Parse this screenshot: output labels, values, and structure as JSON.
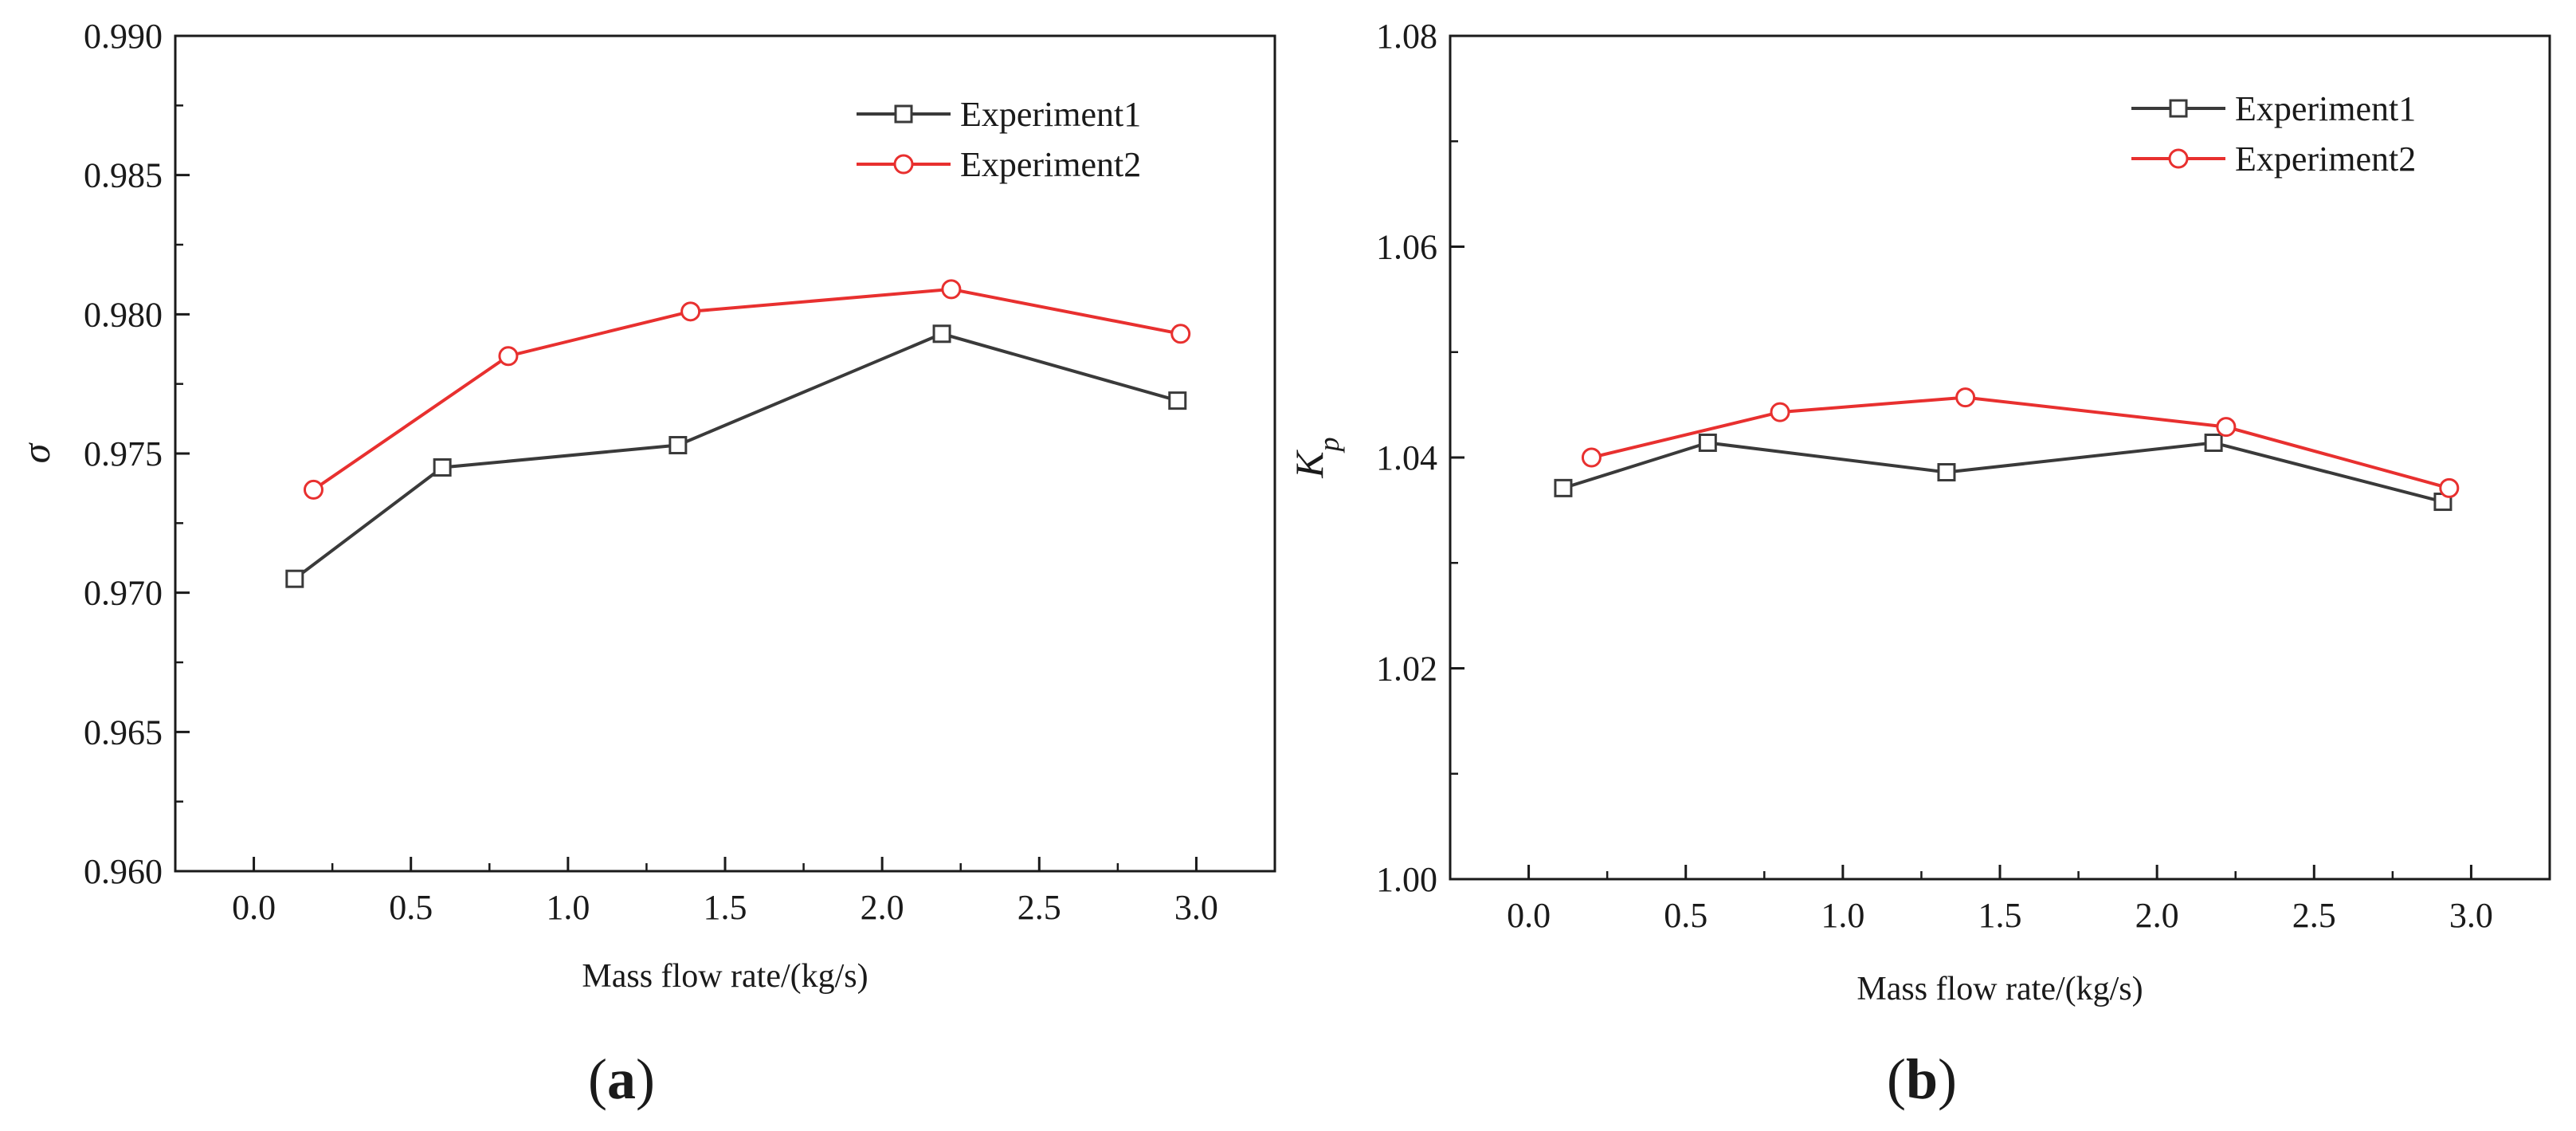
{
  "chart_data": [
    {
      "type": "line",
      "id": "a",
      "panel_label": "(a)",
      "panel_open": "(",
      "panel_letter": "a",
      "panel_close": ")",
      "title": "",
      "xlabel": "Mass flow rate/(kg/s)",
      "ylabel": "σ",
      "ylabel_main": "σ",
      "ylabel_sub": "",
      "xlim": [
        -0.25,
        3.25
      ],
      "ylim": [
        0.96,
        0.99
      ],
      "xticks": [
        0.0,
        0.5,
        1.0,
        1.5,
        2.0,
        2.5,
        3.0
      ],
      "xtick_labels": [
        "0.0",
        "0.5",
        "1.0",
        "1.5",
        "2.0",
        "2.5",
        "3.0"
      ],
      "yticks": [
        0.96,
        0.965,
        0.97,
        0.975,
        0.98,
        0.985,
        0.99
      ],
      "ytick_labels": [
        "0.960",
        "0.965",
        "0.970",
        "0.975",
        "0.980",
        "0.985",
        "0.990"
      ],
      "legend_position": "top-right",
      "series": [
        {
          "name": "Experiment1",
          "color": "#3a3a3a",
          "marker": "square",
          "x": [
            0.13,
            0.6,
            1.35,
            2.19,
            2.94
          ],
          "y": [
            0.9705,
            0.9745,
            0.9753,
            0.9793,
            0.9769
          ]
        },
        {
          "name": "Experiment2",
          "color": "#e8302f",
          "marker": "circle",
          "x": [
            0.19,
            0.81,
            1.39,
            2.22,
            2.95
          ],
          "y": [
            0.9737,
            0.9785,
            0.9801,
            0.9809,
            0.9793
          ]
        }
      ]
    },
    {
      "type": "line",
      "id": "b",
      "panel_label": "(b)",
      "panel_open": "(",
      "panel_letter": "b",
      "panel_close": ")",
      "title": "",
      "xlabel": "Mass flow rate/(kg/s)",
      "ylabel": "Kp",
      "ylabel_main": "K",
      "ylabel_sub": "p",
      "xlim": [
        -0.25,
        3.25
      ],
      "ylim": [
        1.0,
        1.08
      ],
      "xticks": [
        0.0,
        0.5,
        1.0,
        1.5,
        2.0,
        2.5,
        3.0
      ],
      "xtick_labels": [
        "0.0",
        "0.5",
        "1.0",
        "1.5",
        "2.0",
        "2.5",
        "3.0"
      ],
      "yticks": [
        1.0,
        1.02,
        1.04,
        1.06,
        1.08
      ],
      "ytick_labels": [
        "1.00",
        "1.02",
        "1.04",
        "1.06",
        "1.08"
      ],
      "legend_position": "top-right",
      "series": [
        {
          "name": "Experiment1",
          "color": "#3a3a3a",
          "marker": "square",
          "x": [
            0.11,
            0.57,
            1.33,
            2.18,
            2.91
          ],
          "y": [
            1.0371,
            1.0414,
            1.0386,
            1.0414,
            1.0358
          ]
        },
        {
          "name": "Experiment2",
          "color": "#e8302f",
          "marker": "circle",
          "x": [
            0.2,
            0.8,
            1.39,
            2.22,
            2.93
          ],
          "y": [
            1.04,
            1.0443,
            1.0457,
            1.0429,
            1.0371
          ]
        }
      ]
    }
  ]
}
